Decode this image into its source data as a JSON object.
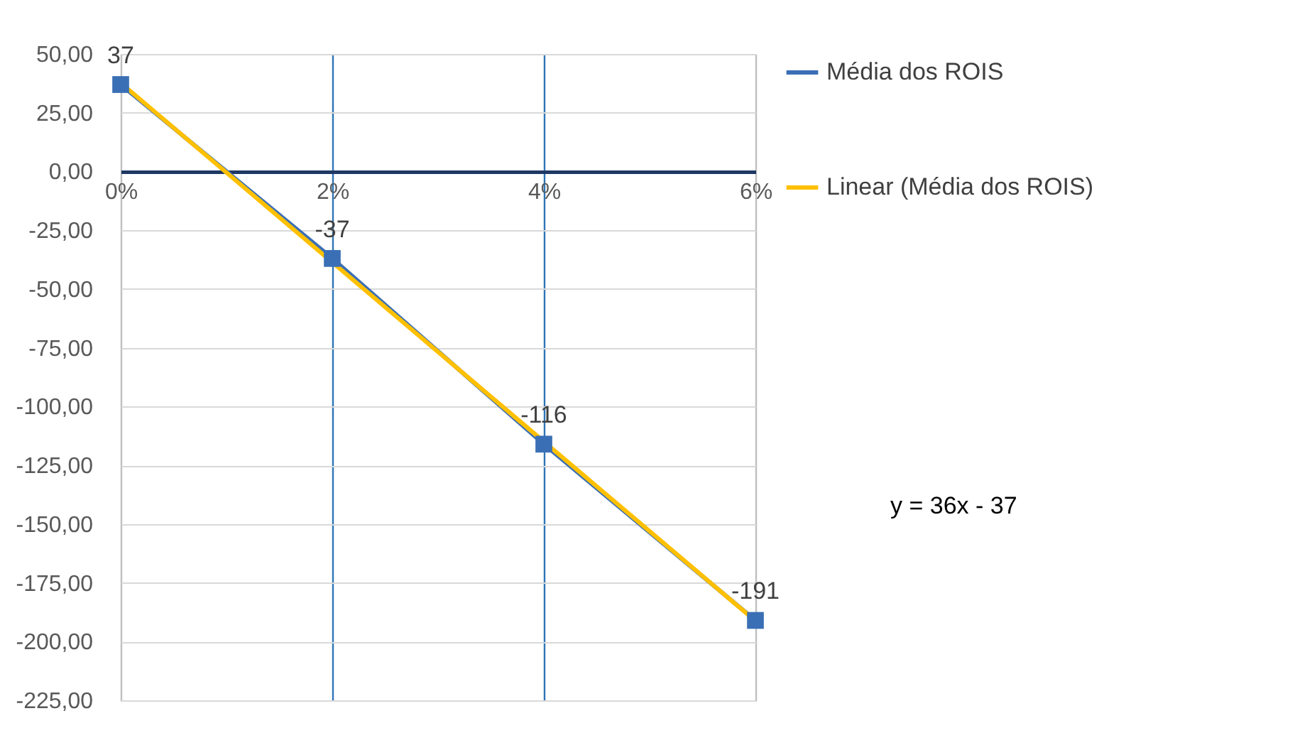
{
  "chart_data": {
    "type": "line",
    "categories": [
      "0%",
      "2%",
      "4%",
      "6%"
    ],
    "series": [
      {
        "name": "Média dos ROIS",
        "color": "#3a6fb5",
        "values": [
          37,
          -37,
          -116,
          -191
        ],
        "marker": "square",
        "data_labels": true
      },
      {
        "name": "Linear (Média dos ROIS)",
        "color": "#ffc000",
        "values": [
          37.7,
          -38.6,
          -114.9,
          -191.2
        ],
        "marker": "none"
      }
    ],
    "ylim": [
      -225,
      50
    ],
    "yticks": [
      {
        "value": 50,
        "label": "50,00"
      },
      {
        "value": 25,
        "label": "25,00"
      },
      {
        "value": 0,
        "label": "0,00"
      },
      {
        "value": -25,
        "label": "-25,00"
      },
      {
        "value": -50,
        "label": "-50,00"
      },
      {
        "value": -75,
        "label": "-75,00"
      },
      {
        "value": -100,
        "label": "-100,00"
      },
      {
        "value": -125,
        "label": "-125,00"
      },
      {
        "value": -150,
        "label": "-150,00"
      },
      {
        "value": -175,
        "label": "-175,00"
      },
      {
        "value": -200,
        "label": "-200,00"
      },
      {
        "value": -225,
        "label": "-225,00"
      }
    ],
    "grid": true,
    "legend": "right",
    "line_style": "solid",
    "annotations": [
      "y = 36x - 37"
    ]
  }
}
